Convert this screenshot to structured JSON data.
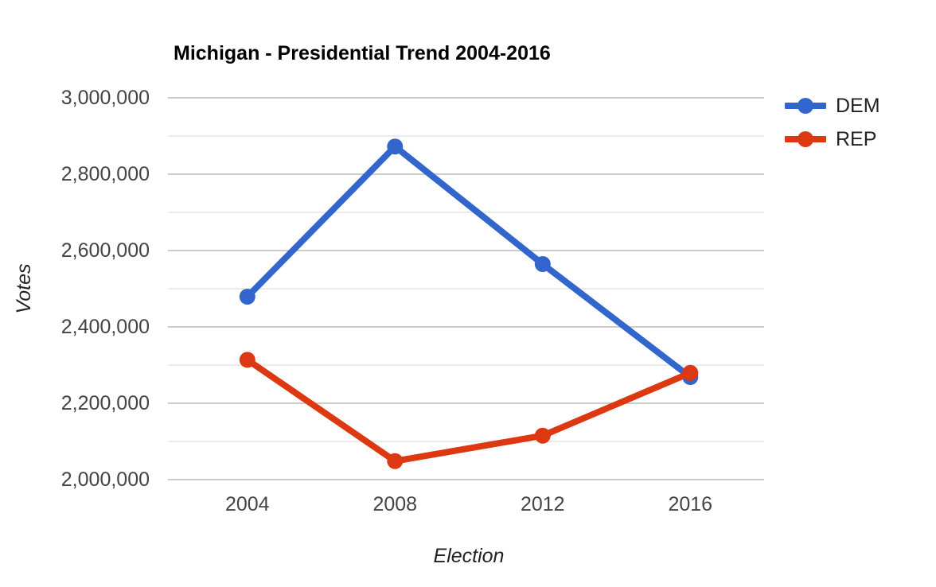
{
  "chart_data": {
    "type": "line",
    "title": "Michigan - Presidential Trend 2004-2016",
    "xlabel": "Election",
    "ylabel": "Votes",
    "categories": [
      "2004",
      "2008",
      "2012",
      "2016"
    ],
    "series": [
      {
        "name": "DEM",
        "color": "#3366cc",
        "values": [
          2479183,
          2872579,
          2564569,
          2268839
        ]
      },
      {
        "name": "REP",
        "color": "#dc3912",
        "values": [
          2313746,
          2048639,
          2115256,
          2279543
        ]
      }
    ],
    "ylim": [
      2000000,
      3000000
    ],
    "y_major_step": 200000,
    "y_minor_step": 100000,
    "y_tick_labels": [
      "2,000,000",
      "2,200,000",
      "2,400,000",
      "2,600,000",
      "2,800,000",
      "3,000,000"
    ],
    "grid": true,
    "grid_major_color": "#cccccc",
    "grid_minor_color": "#ebebeb",
    "legend_position": "right",
    "marker": "circle"
  }
}
